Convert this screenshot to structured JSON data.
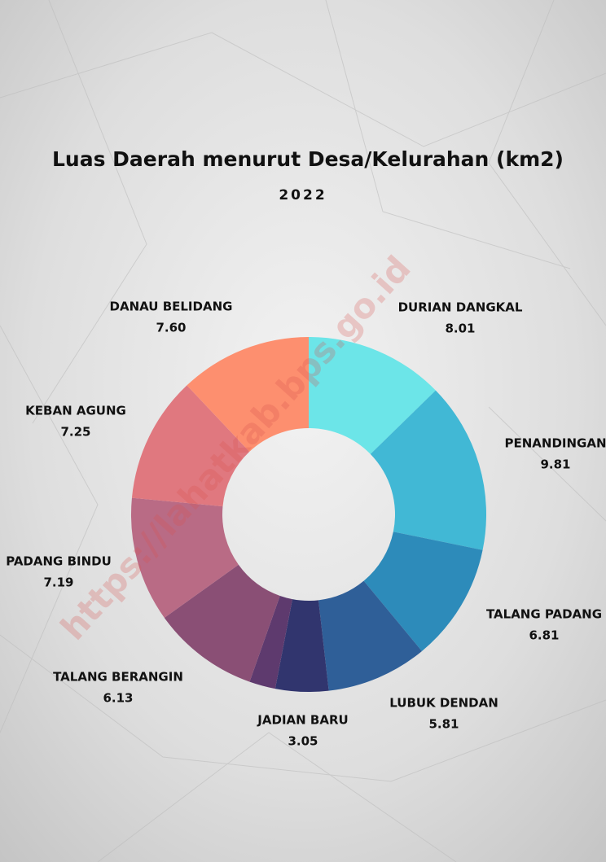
{
  "chart_data": {
    "type": "donut",
    "title": "Luas Daerah menurut Desa/Kelurahan (km2)",
    "subtitle": "2022",
    "watermark": "https://lahatkab.bps.go.id",
    "categories": [
      "DURIAN DANGKAL",
      "PENANDINGAN",
      "TALANG PADANG",
      "LUBUK DENDAN",
      "JADIAN BARU",
      null,
      "TALANG BERANGIN",
      "PADANG BINDU",
      "KEBAN AGUNG",
      "DANAU BELIDANG"
    ],
    "values": [
      8.01,
      9.81,
      6.81,
      5.81,
      3.05,
      1.5,
      6.13,
      7.19,
      7.25,
      7.6
    ],
    "value_labels": [
      "8.01",
      "9.81",
      "6.81",
      "5.81",
      "3.05",
      null,
      "6.13",
      "7.19",
      "7.25",
      "7.60"
    ],
    "colors": [
      "#6ce5e8",
      "#41b8d5",
      "#2d8bba",
      "#2f5f98",
      "#31356e",
      "#5e3a6e",
      "#8a4f75",
      "#b96b85",
      "#e0787f",
      "#fd8f6f"
    ]
  }
}
